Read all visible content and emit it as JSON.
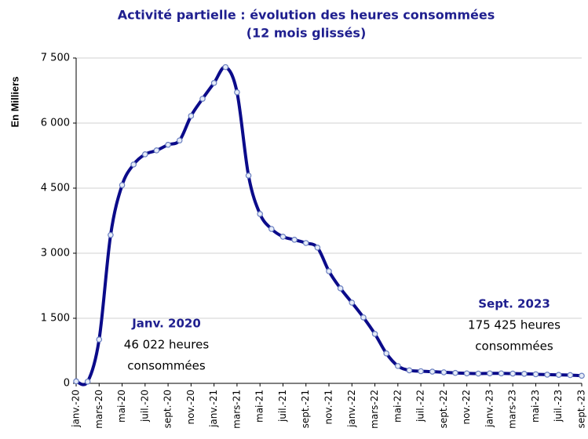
{
  "chart_data": {
    "type": "line",
    "title": "Activité partielle : évolution des heures consommées",
    "subtitle": "(12 mois glissés)",
    "y_label": "En Milliers",
    "categories": [
      "janv.-20",
      null,
      "mars-20",
      null,
      "mai-20",
      null,
      "juil.-20",
      null,
      "sept.-20",
      null,
      "nov.-20",
      null,
      "janv.-21",
      null,
      "mars-21",
      null,
      "mai-21",
      null,
      "juil.-21",
      null,
      "sept.-21",
      null,
      "nov.-21",
      null,
      "janv.-22",
      null,
      "mars-22",
      null,
      "mai-22",
      null,
      "juil.-22",
      null,
      "sept.-22",
      null,
      "nov.-22",
      null,
      "janv.-23",
      null,
      "mars-23",
      null,
      "mai-23",
      null,
      "juil.-23",
      null,
      "sept.-23"
    ],
    "series": [
      {
        "color": "#0b0b8a",
        "values": [
          46,
          40,
          1010,
          3420,
          4570,
          5045,
          5280,
          5370,
          5500,
          5600,
          6165,
          6560,
          6925,
          7290,
          6710,
          4790,
          3905,
          3560,
          3380,
          3310,
          3235,
          3130,
          2585,
          2190,
          1860,
          1520,
          1140,
          690,
          400,
          300,
          280,
          270,
          255,
          240,
          230,
          225,
          230,
          230,
          225,
          220,
          210,
          200,
          195,
          190,
          175
        ]
      }
    ],
    "ylim": [
      0,
      7500
    ],
    "yticks": [
      0,
      {
        "value": 1500,
        "label": "1 500"
      },
      {
        "value": 3000,
        "label": "3 000"
      },
      {
        "value": 4500,
        "label": "4 500"
      },
      {
        "value": 6000,
        "label": "6 000"
      },
      {
        "value": 7500,
        "label": "7 500"
      }
    ],
    "grid": true,
    "annotations": [
      {
        "title": "Janv. 2020",
        "lines": [
          "46 022 heures",
          "consommées"
        ]
      },
      {
        "title": "Sept. 2023",
        "lines": [
          "175 425 heures",
          "consommées"
        ]
      }
    ]
  }
}
